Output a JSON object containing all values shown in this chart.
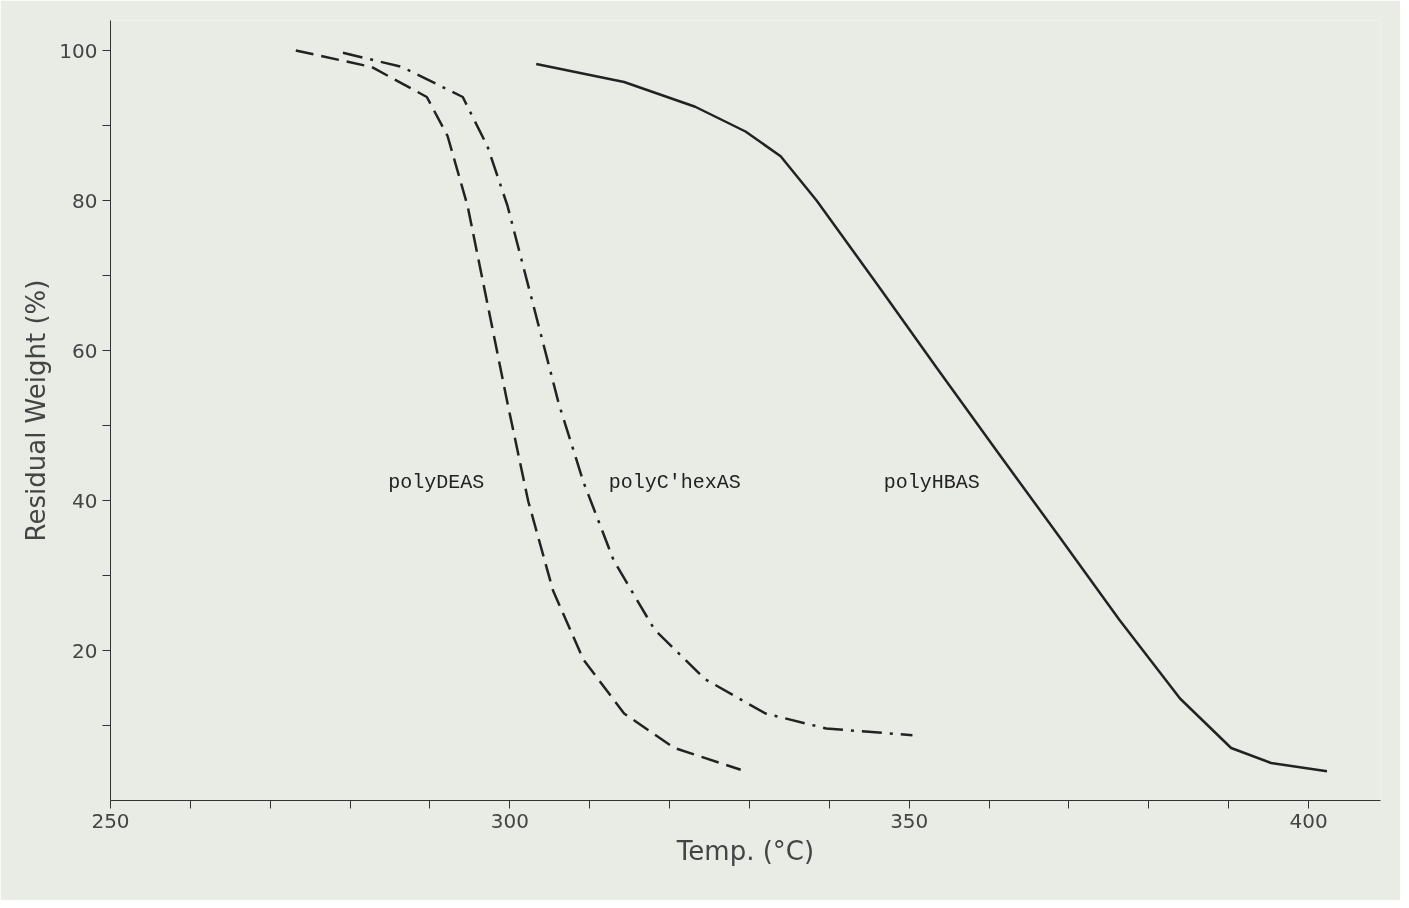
{
  "chart_data": {
    "type": "line",
    "xlabel": "Temp. (°C)",
    "ylabel": "Residual Weight (%)",
    "xlim": [
      250,
      409
    ],
    "ylim": [
      0,
      104
    ],
    "xticks": [
      250,
      {
        "value": 260,
        "label": null
      },
      {
        "value": 270,
        "label": null
      },
      {
        "value": 280,
        "label": null
      },
      {
        "value": 290,
        "label": null
      },
      300,
      {
        "value": 310,
        "label": null
      },
      {
        "value": 320,
        "label": null
      },
      {
        "value": 330,
        "label": null
      },
      {
        "value": 340,
        "label": null
      },
      350,
      {
        "value": 360,
        "label": null
      },
      {
        "value": 370,
        "label": null
      },
      {
        "value": 380,
        "label": null
      },
      {
        "value": 390,
        "label": null
      },
      400
    ],
    "yticks": [
      {
        "value": 10,
        "label": null
      },
      20,
      {
        "value": 30,
        "label": null
      },
      40,
      {
        "value": 50,
        "label": null
      },
      60,
      {
        "value": 70,
        "label": null
      },
      80,
      {
        "value": 90,
        "label": null
      },
      100
    ],
    "grid": false,
    "marker": "none",
    "series": [
      {
        "name": "polyDEAS",
        "color": "#222222",
        "line_style": "dashed",
        "x": [
          273.2,
          282.7,
          289.6,
          292.2,
          294.7,
          297.2,
          299.7,
          302.3,
          305.4,
          309.2,
          314.3,
          320.6,
          328.9
        ],
        "values": [
          100,
          97.8,
          93.8,
          88.6,
          79.3,
          66.2,
          53,
          39.9,
          28,
          18.8,
          11.6,
          7,
          4.1
        ]
      },
      {
        "name": "polyC'hexAS",
        "color": "#222222",
        "line_style": "dashdot",
        "x": [
          279.1,
          286.5,
          294.1,
          297.2,
          299.7,
          302.9,
          306.1,
          309.2,
          313,
          318.1,
          324.4,
          332,
          339.6,
          350.4
        ],
        "values": [
          99.7,
          97.8,
          93.8,
          87.2,
          79.3,
          66.2,
          53,
          42.5,
          32,
          22.8,
          16.2,
          11.6,
          9.6,
          8.7
        ]
      },
      {
        "name": "polyHBAS",
        "color": "#222222",
        "line_style": "solid",
        "x": [
          303.3,
          314.3,
          323.2,
          329.5,
          333.9,
          338.4,
          346,
          353.5,
          361.1,
          368.7,
          376.3,
          383.9,
          390.3,
          395.3,
          402.3
        ],
        "values": [
          98.2,
          95.8,
          92.5,
          89.2,
          85.9,
          80,
          68.8,
          57.6,
          46.4,
          35.3,
          24.1,
          13.6,
          7,
          5,
          3.9
        ]
      }
    ]
  }
}
